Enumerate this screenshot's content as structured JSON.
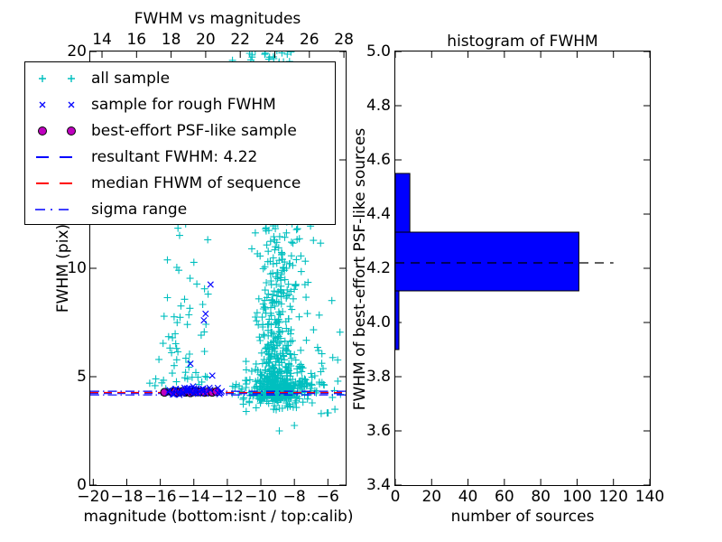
{
  "figure": {
    "background": "#ffffff"
  },
  "colors": {
    "cyan": "#00bfbf",
    "blue": "#0000ff",
    "magenta": "#bf00bf",
    "red": "#ff0000",
    "black": "#000000",
    "hist_fill": "#0000ff"
  },
  "legend": {
    "items": [
      {
        "label": "all sample",
        "marker": "plus",
        "color": "#00bfbf"
      },
      {
        "label": "sample for rough FWHM",
        "marker": "cross",
        "color": "#0000ff"
      },
      {
        "label": "best-effort PSF-like sample",
        "marker": "circle",
        "color": "#bf00bf",
        "edge": "#000000"
      },
      {
        "label": "resultant FWHM: 4.22",
        "marker": "dashed",
        "color": "#0000ff"
      },
      {
        "label": "median FHWM of sequence",
        "marker": "dashed",
        "color": "#ff0000"
      },
      {
        "label": "sigma range",
        "marker": "dashdot",
        "color": "#0000ff"
      }
    ]
  },
  "chart_data": [
    {
      "type": "scatter",
      "title": "FWHM vs magnitudes",
      "xlabel": "magnitude (bottom:isnt / top:calib)",
      "ylabel": "FWHM (pix)",
      "rng_seed": 42,
      "x_axis_bottom": {
        "name": "isnt magnitude",
        "lim": [
          -20.18,
          -4.94
        ],
        "ticks": [
          {
            "v": -20,
            "label": "−20"
          },
          {
            "v": -18,
            "label": "−18"
          },
          {
            "v": -16,
            "label": "−16"
          },
          {
            "v": -14,
            "label": "−14"
          },
          {
            "v": -12,
            "label": "−12"
          },
          {
            "v": -10,
            "label": "−10"
          },
          {
            "v": -8,
            "label": "−8"
          },
          {
            "v": -6,
            "label": "−6"
          }
        ]
      },
      "x_axis_top": {
        "name": "calib magnitude",
        "lim": [
          13.32,
          28.1
        ],
        "ticks": [
          {
            "v": 14,
            "label": "14"
          },
          {
            "v": 16,
            "label": "16"
          },
          {
            "v": 18,
            "label": "18"
          },
          {
            "v": 20,
            "label": "20"
          },
          {
            "v": 22,
            "label": "22"
          },
          {
            "v": 24,
            "label": "24"
          },
          {
            "v": 26,
            "label": "26"
          },
          {
            "v": 28,
            "label": "28"
          }
        ]
      },
      "y_axis": {
        "lim": [
          0,
          20
        ],
        "ticks": [
          {
            "v": 0,
            "label": "0"
          },
          {
            "v": 5,
            "label": "5"
          },
          {
            "v": 10,
            "label": "10"
          },
          {
            "v": 15,
            "label": "15"
          },
          {
            "v": 20,
            "label": "20"
          }
        ]
      },
      "series": [
        {
          "name": "all sample",
          "marker": "plus",
          "color": "#00bfbf",
          "clusters": [
            {
              "n": 520,
              "x": {
                "dist": "normal",
                "mu": -9.1,
                "sd": 0.55,
                "min": -10.7,
                "max": -7.5
              },
              "y": {
                "dist": "power",
                "min": 4.0,
                "max": 20.4,
                "exp": 2.6
              }
            },
            {
              "n": 210,
              "x": {
                "dist": "normal",
                "mu": -8.9,
                "sd": 1.25,
                "min": -12.0,
                "max": -6.0
              },
              "y": {
                "dist": "normal",
                "mu": 4.45,
                "sd": 0.45,
                "min": 3.2,
                "max": 6.6
              }
            },
            {
              "n": 90,
              "x": {
                "dist": "normal",
                "mu": -8.1,
                "sd": 1.0,
                "min": -10.6,
                "max": -5.5
              },
              "y": {
                "dist": "power",
                "min": 4.5,
                "max": 13.5,
                "exp": 1.6
              }
            },
            {
              "n": 50,
              "x": {
                "dist": "normal",
                "mu": -9.5,
                "sd": 1.6,
                "min": -13.6,
                "max": -6.4
              },
              "y": {
                "dist": "power",
                "min": 20.4,
                "max": 16.0,
                "exp": 1.8
              }
            },
            {
              "n": 55,
              "x": {
                "dist": "normal",
                "mu": -14.5,
                "sd": 0.75,
                "min": -16.3,
                "max": -12.9
              },
              "y": {
                "dist": "power",
                "min": 4.5,
                "max": 12.2,
                "exp": 1.35
              }
            },
            {
              "n": 10,
              "x": {
                "dist": "normal",
                "mu": -14.4,
                "sd": 0.5,
                "min": -15.5,
                "max": -13.3
              },
              "y": {
                "dist": "uniform",
                "min": 12.0,
                "max": 17.5
              }
            },
            {
              "n": 6,
              "x": {
                "dist": "uniform",
                "min": -16.7,
                "max": -15.6
              },
              "y": {
                "dist": "normal",
                "mu": 4.6,
                "sd": 0.35,
                "min": 4.1,
                "max": 5.4
              }
            },
            {
              "n": 14,
              "x": {
                "dist": "uniform",
                "min": -6.6,
                "max": -5.2
              },
              "y": {
                "dist": "power",
                "min": 3.3,
                "max": 8.2,
                "exp": 1.4
              }
            }
          ],
          "points": [
            [
              -8.9,
              2.5
            ],
            [
              -8.0,
              2.75
            ],
            [
              -6.4,
              3.3
            ]
          ]
        },
        {
          "name": "sample for rough FWHM",
          "marker": "cross",
          "color": "#0000ff",
          "clusters": [
            {
              "n": 42,
              "x": {
                "dist": "uniform",
                "min": -15.7,
                "max": -12.3
              },
              "y": {
                "dist": "normal",
                "mu": 4.33,
                "sd": 0.1,
                "min": 4.1,
                "max": 4.6
              }
            }
          ],
          "points": [
            [
              -13.0,
              9.25
            ],
            [
              -13.3,
              7.9
            ],
            [
              -13.4,
              7.6
            ],
            [
              -14.2,
              5.6
            ],
            [
              -12.9,
              5.05
            ]
          ]
        },
        {
          "name": "best-effort PSF-like sample",
          "marker": "circle",
          "color": "#bf00bf",
          "edge": "#000000",
          "clusters": [],
          "points": [
            [
              -15.75,
              4.28
            ],
            [
              -15.3,
              4.3
            ],
            [
              -15.1,
              4.32
            ],
            [
              -14.95,
              4.27
            ],
            [
              -14.8,
              4.3
            ],
            [
              -14.65,
              4.33
            ],
            [
              -14.5,
              4.28
            ],
            [
              -14.35,
              4.31
            ],
            [
              -14.2,
              4.26
            ],
            [
              -14.05,
              4.3
            ],
            [
              -13.9,
              4.33
            ],
            [
              -13.75,
              4.29
            ],
            [
              -13.55,
              4.31
            ],
            [
              -13.35,
              4.27
            ],
            [
              -13.15,
              4.3
            ],
            [
              -12.9,
              4.28
            ],
            [
              -12.65,
              4.31
            ]
          ]
        }
      ],
      "lines": [
        {
          "name": "resultant FWHM",
          "value": 4.22,
          "color": "#0000ff",
          "style": "dashed"
        },
        {
          "name": "median FHWM of sequence",
          "value": 4.27,
          "color": "#ff0000",
          "style": "dashed"
        },
        {
          "name": "sigma range upper",
          "value": 4.33,
          "color": "#0000ff",
          "style": "dashdot"
        },
        {
          "name": "sigma range lower",
          "value": 4.16,
          "color": "#0000ff",
          "style": "dashdot"
        }
      ]
    },
    {
      "type": "bar",
      "orientation": "horizontal",
      "title": "histogram of FWHM",
      "xlabel": "number of sources",
      "ylabel": "FWHM of best-effort PSF-like sources",
      "bin_edges": [
        3.9,
        4.1167,
        4.3333,
        4.55
      ],
      "counts": [
        2,
        101,
        8
      ],
      "bar_color": "#0000ff",
      "bar_edge": "#000000",
      "mean_line": {
        "value": 4.22,
        "x_extent": [
          0,
          120
        ],
        "color": "#000000",
        "style": "dashed"
      },
      "x_axis": {
        "lim": [
          0,
          140
        ],
        "ticks": [
          {
            "v": 0,
            "label": "0"
          },
          {
            "v": 20,
            "label": "20"
          },
          {
            "v": 40,
            "label": "40"
          },
          {
            "v": 60,
            "label": "60"
          },
          {
            "v": 80,
            "label": "80"
          },
          {
            "v": 100,
            "label": "100"
          },
          {
            "v": 120,
            "label": "120"
          },
          {
            "v": 140,
            "label": "140"
          }
        ]
      },
      "y_axis": {
        "lim": [
          3.4,
          5.0
        ],
        "ticks": [
          {
            "v": 3.4,
            "label": "3.4"
          },
          {
            "v": 3.6,
            "label": "3.6"
          },
          {
            "v": 3.8,
            "label": "3.8"
          },
          {
            "v": 4.0,
            "label": "4.0"
          },
          {
            "v": 4.2,
            "label": "4.2"
          },
          {
            "v": 4.4,
            "label": "4.4"
          },
          {
            "v": 4.6,
            "label": "4.6"
          },
          {
            "v": 4.8,
            "label": "4.8"
          },
          {
            "v": 5.0,
            "label": "5.0"
          }
        ]
      }
    }
  ]
}
